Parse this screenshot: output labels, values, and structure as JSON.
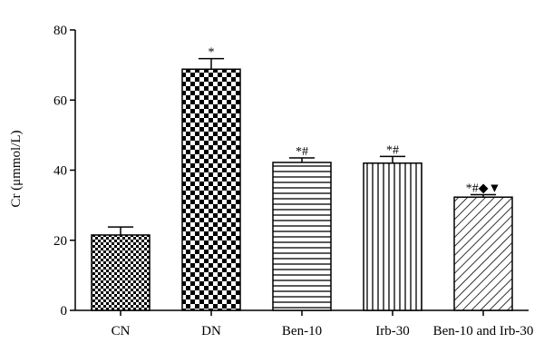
{
  "chart_data": {
    "type": "bar",
    "ylabel": "Cr (μmmol/L)",
    "ylim": [
      0,
      80
    ],
    "yticks": [
      0,
      20,
      40,
      60,
      80
    ],
    "grid": false,
    "categories": [
      "CN",
      "DN",
      "Ben-10",
      "Irb-30",
      "Ben-10 and Irb-30"
    ],
    "values": [
      21.5,
      68.8,
      42.2,
      42.0,
      32.3
    ],
    "errors": [
      2.3,
      3.0,
      1.3,
      1.9,
      0.7
    ],
    "significance": [
      "",
      "*",
      "*#",
      "*#",
      "*#◆▼"
    ],
    "patterns": [
      "fine-checker",
      "coarse-checker",
      "horizontal-lines",
      "vertical-lines",
      "diagonal-lines"
    ]
  }
}
